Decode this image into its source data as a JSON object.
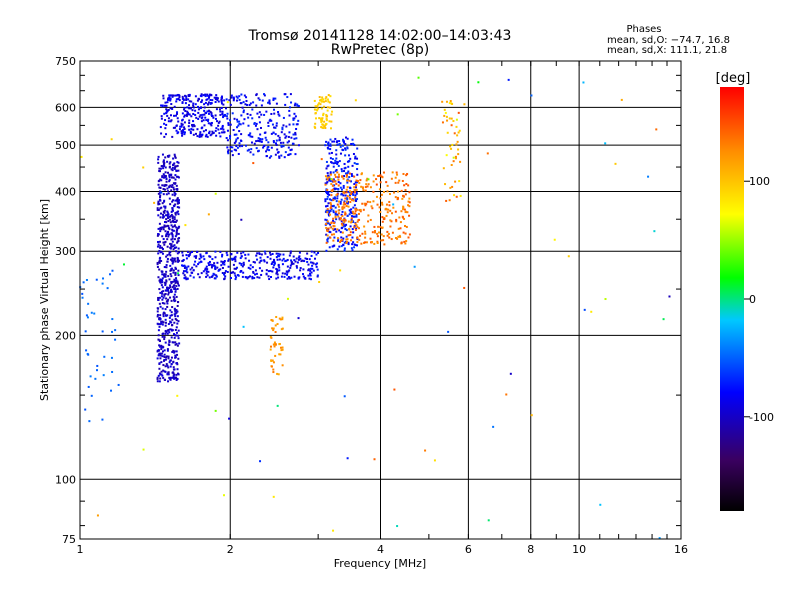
{
  "chart_data": {
    "type": "scatter",
    "title": "Tromsø 20141128 14:02:00–14:03:43",
    "subtitle": "RwPretec (8p)",
    "xlabel": "Frequency [MHz]",
    "ylabel": "Stationary phase Virtual Height [km]",
    "x_scale": "log",
    "y_scale": "log",
    "xlim": [
      1,
      16
    ],
    "ylim": [
      75,
      750
    ],
    "x_ticks": [
      1,
      2,
      4,
      6,
      8,
      10,
      16
    ],
    "y_ticks": [
      75,
      100,
      200,
      300,
      400,
      500,
      600,
      750
    ],
    "x_grid": [
      2,
      4,
      6,
      8,
      10
    ],
    "y_grid": [
      100,
      200,
      300,
      400,
      500,
      600
    ],
    "grid": true,
    "legend": {
      "heading": "Phases",
      "line1": "mean, sd,O: −74.7, 16.8",
      "line2": "mean, sd,X: 111.1, 21.8"
    },
    "colorbar": {
      "label": "[deg]",
      "range": [
        -180,
        180
      ],
      "ticks": [
        100,
        0,
        -100
      ],
      "colormap": [
        "#000000",
        "#3a0060",
        "#0000ff",
        "#00c8ff",
        "#00ff00",
        "#ffff00",
        "#ff8c00",
        "#ff0000"
      ]
    },
    "clusters": [
      {
        "name": "O-trace vertical",
        "f": [
          1.43,
          1.58
        ],
        "h": [
          160,
          480
        ],
        "phase": [
          -110,
          -90
        ],
        "n": 700
      },
      {
        "name": "O-trace upper bulb",
        "f": [
          1.45,
          1.95
        ],
        "h": [
          520,
          640
        ],
        "phase": [
          -100,
          -75
        ],
        "n": 300
      },
      {
        "name": "O-trace upper mid",
        "f": [
          1.95,
          2.75
        ],
        "h": [
          470,
          640
        ],
        "phase": [
          -95,
          -65
        ],
        "n": 260
      },
      {
        "name": "F2 O curve",
        "f": [
          1.6,
          3.0
        ],
        "h": [
          262,
          300
        ],
        "phase": [
          -100,
          -70
        ],
        "n": 350
      },
      {
        "name": "O 3.2 spike",
        "f": [
          3.1,
          3.6
        ],
        "h": [
          300,
          520
        ],
        "phase": [
          -90,
          -60
        ],
        "n": 320
      },
      {
        "name": "X trace",
        "f": [
          3.1,
          4.6
        ],
        "h": [
          310,
          440
        ],
        "phase": [
          120,
          150
        ],
        "n": 350
      },
      {
        "name": "yellow blob",
        "f": [
          2.95,
          3.2
        ],
        "h": [
          540,
          640
        ],
        "phase": [
          85,
          105
        ],
        "n": 70
      },
      {
        "name": "Es orange",
        "f": [
          2.4,
          2.55
        ],
        "h": [
          165,
          220
        ],
        "phase": [
          110,
          135
        ],
        "n": 45
      },
      {
        "name": "low cyan",
        "f": [
          1.0,
          1.2
        ],
        "h": [
          132,
          280
        ],
        "phase": [
          -55,
          -40
        ],
        "n": 40
      },
      {
        "name": "5.5 spikes",
        "f": [
          5.3,
          5.9
        ],
        "h": [
          380,
          630
        ],
        "phase": [
          60,
          150
        ],
        "n": 50
      },
      {
        "name": "scattered",
        "f": [
          1.0,
          16.0
        ],
        "h": [
          75,
          700
        ],
        "phase": [
          -110,
          150
        ],
        "n": 70
      }
    ]
  }
}
